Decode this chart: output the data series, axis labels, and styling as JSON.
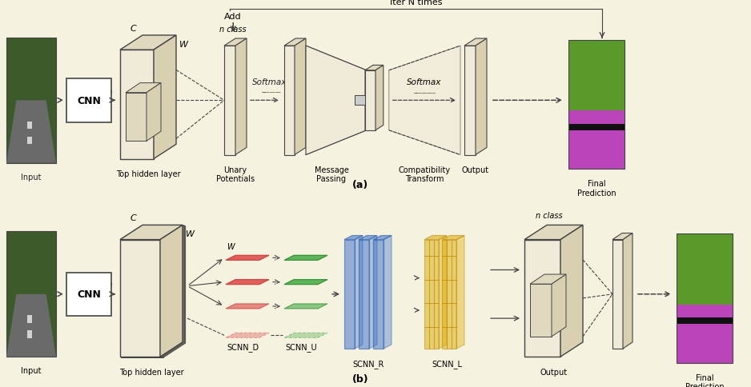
{
  "bg_color": "#f5f2e0",
  "ec": "#444444",
  "fc": "#f0ead8",
  "fc_dark": "#e0d9c0",
  "fc_side": "#d8d0b0",
  "title_a": "(a)",
  "title_b": "(b)",
  "iter_label": "Iter N times",
  "softmax_label": "Softmax",
  "add_label": "Add",
  "cnn_label": "CNN",
  "red1": "#dd4444",
  "red2": "#cc3333",
  "green1": "#44aa44",
  "green2": "#228822",
  "blue1": "#4477cc",
  "blue2": "#2255aa",
  "yellow1": "#ddaa00",
  "yellow2": "#bb8800"
}
